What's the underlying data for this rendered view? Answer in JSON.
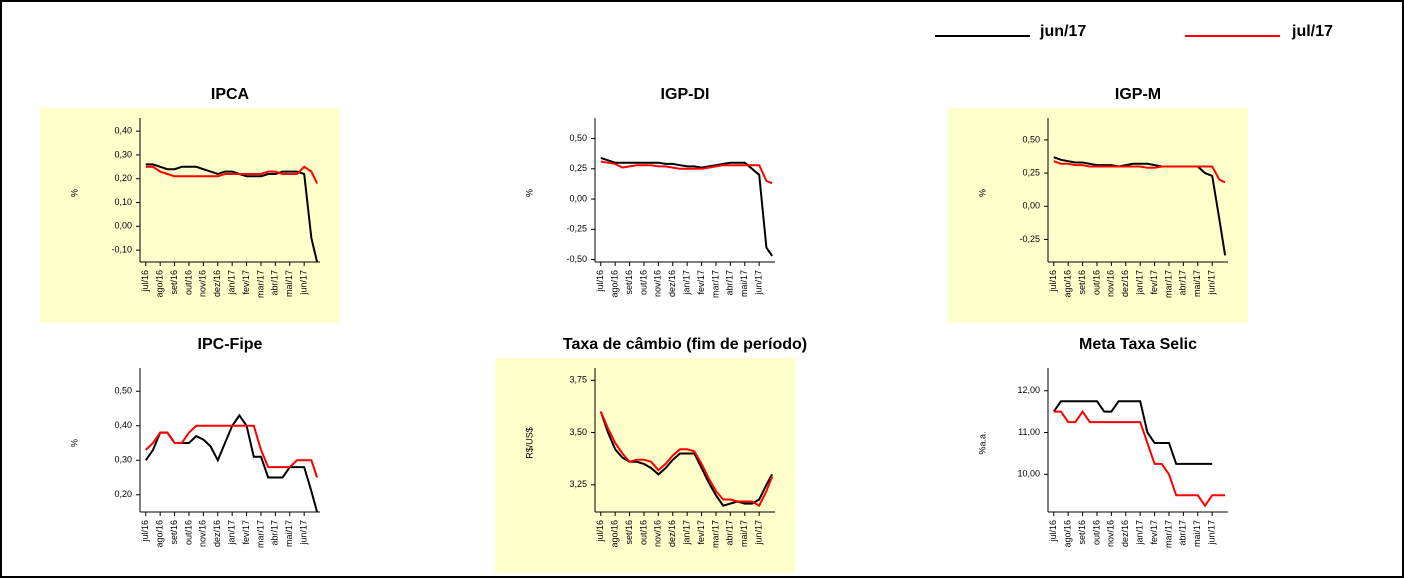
{
  "chart_data": [
    {
      "type": "line",
      "title": "IPCA",
      "ylabel": "%",
      "background": "#ffffcc",
      "x": [
        0,
        0.5,
        1,
        1.5,
        2,
        2.5,
        3,
        3.5,
        4,
        4.5,
        5,
        5.5,
        6,
        6.5,
        7,
        7.5,
        8,
        8.5,
        9,
        9.5,
        10,
        10.5,
        11,
        11.5,
        11.9
      ],
      "xlim": [
        -0.4,
        12.1
      ],
      "xticks": [
        {
          "value": 0,
          "label": "jul/16"
        },
        {
          "value": 1,
          "label": "ago/16"
        },
        {
          "value": 2,
          "label": "set/16"
        },
        {
          "value": 3,
          "label": "out/16"
        },
        {
          "value": 4,
          "label": "nov/16"
        },
        {
          "value": 5,
          "label": "dez/16"
        },
        {
          "value": 6,
          "label": "jan/17"
        },
        {
          "value": 7,
          "label": "fev/17"
        },
        {
          "value": 8,
          "label": "mar/17"
        },
        {
          "value": 9,
          "label": "abr/17"
        },
        {
          "value": 10,
          "label": "mai/17"
        },
        {
          "value": 11,
          "label": "jun/17"
        }
      ],
      "ylim": [
        -0.15,
        0.43
      ],
      "yticks": [
        {
          "value": -0.1,
          "label": "-0,10"
        },
        {
          "value": 0,
          "label": "0,00"
        },
        {
          "value": 0.1,
          "label": "0,10"
        },
        {
          "value": 0.2,
          "label": "0,20"
        },
        {
          "value": 0.3,
          "label": "0,30"
        },
        {
          "value": 0.4,
          "label": "0,40"
        }
      ],
      "series": [
        {
          "name": "jun/17",
          "color": "#000000",
          "values": [
            0.26,
            0.26,
            0.25,
            0.24,
            0.24,
            0.25,
            0.25,
            0.25,
            0.24,
            0.23,
            0.22,
            0.23,
            0.23,
            0.22,
            0.21,
            0.21,
            0.21,
            0.22,
            0.22,
            0.23,
            0.23,
            0.23,
            0.22,
            -0.05,
            -0.15
          ]
        },
        {
          "name": "jul/17",
          "color": "#ff0000",
          "values": [
            0.25,
            0.25,
            0.23,
            0.22,
            0.21,
            0.21,
            0.21,
            0.21,
            0.21,
            0.21,
            0.21,
            0.22,
            0.22,
            0.22,
            0.22,
            0.22,
            0.22,
            0.23,
            0.23,
            0.22,
            0.22,
            0.22,
            0.25,
            0.23,
            0.18
          ]
        }
      ]
    },
    {
      "type": "line",
      "title": "IGP-DI",
      "ylabel": "%",
      "background": "#ffffff",
      "x": [
        0,
        0.5,
        1,
        1.5,
        2,
        2.5,
        3,
        3.5,
        4,
        4.5,
        5,
        5.5,
        6,
        6.5,
        7,
        7.5,
        8,
        8.5,
        9,
        9.5,
        10,
        10.5,
        11,
        11.5,
        11.9
      ],
      "xlim": [
        -0.4,
        12.1
      ],
      "xticks": [
        {
          "value": 0,
          "label": "jul/16"
        },
        {
          "value": 1,
          "label": "ago/16"
        },
        {
          "value": 2,
          "label": "set/16"
        },
        {
          "value": 3,
          "label": "out/16"
        },
        {
          "value": 4,
          "label": "nov/16"
        },
        {
          "value": 5,
          "label": "dez/16"
        },
        {
          "value": 6,
          "label": "jan/17"
        },
        {
          "value": 7,
          "label": "fev/17"
        },
        {
          "value": 8,
          "label": "mar/17"
        },
        {
          "value": 9,
          "label": "abr/17"
        },
        {
          "value": 10,
          "label": "mai/17"
        },
        {
          "value": 11,
          "label": "jun/17"
        }
      ],
      "ylim": [
        -0.52,
        0.62
      ],
      "yticks": [
        {
          "value": -0.5,
          "label": "-0,50"
        },
        {
          "value": -0.25,
          "label": "-0,25"
        },
        {
          "value": 0,
          "label": "0,00"
        },
        {
          "value": 0.25,
          "label": "0,25"
        },
        {
          "value": 0.5,
          "label": "0,50"
        }
      ],
      "series": [
        {
          "name": "jun/17",
          "color": "#000000",
          "values": [
            0.34,
            0.32,
            0.3,
            0.3,
            0.3,
            0.3,
            0.3,
            0.3,
            0.3,
            0.29,
            0.29,
            0.28,
            0.27,
            0.27,
            0.26,
            0.27,
            0.28,
            0.29,
            0.3,
            0.3,
            0.3,
            0.25,
            0.2,
            -0.4,
            -0.47
          ]
        },
        {
          "name": "jul/17",
          "color": "#ff0000",
          "values": [
            0.31,
            0.3,
            0.29,
            0.26,
            0.27,
            0.28,
            0.28,
            0.28,
            0.27,
            0.27,
            0.26,
            0.25,
            0.25,
            0.25,
            0.25,
            0.26,
            0.27,
            0.28,
            0.28,
            0.28,
            0.28,
            0.28,
            0.28,
            0.15,
            0.13
          ]
        }
      ]
    },
    {
      "type": "line",
      "title": "IGP-M",
      "ylabel": "%",
      "background": "#ffffcc",
      "x": [
        0,
        0.5,
        1,
        1.5,
        2,
        2.5,
        3,
        3.5,
        4,
        4.5,
        5,
        5.5,
        6,
        6.5,
        7,
        7.5,
        8,
        8.5,
        9,
        9.5,
        10,
        10.5,
        11,
        11.5,
        11.9
      ],
      "xlim": [
        -0.4,
        12.1
      ],
      "xticks": [
        {
          "value": 0,
          "label": "jul/16"
        },
        {
          "value": 1,
          "label": "ago/16"
        },
        {
          "value": 2,
          "label": "set/16"
        },
        {
          "value": 3,
          "label": "out/16"
        },
        {
          "value": 4,
          "label": "nov/16"
        },
        {
          "value": 5,
          "label": "dez/16"
        },
        {
          "value": 6,
          "label": "jan/17"
        },
        {
          "value": 7,
          "label": "fev/17"
        },
        {
          "value": 8,
          "label": "mar/17"
        },
        {
          "value": 9,
          "label": "abr/17"
        },
        {
          "value": 10,
          "label": "mai/17"
        },
        {
          "value": 11,
          "label": "jun/17"
        }
      ],
      "ylim": [
        -0.42,
        0.62
      ],
      "yticks": [
        {
          "value": -0.25,
          "label": "-0,25"
        },
        {
          "value": 0,
          "label": "0,00"
        },
        {
          "value": 0.25,
          "label": "0,25"
        },
        {
          "value": 0.5,
          "label": "0,50"
        }
      ],
      "series": [
        {
          "name": "jun/17",
          "color": "#000000",
          "values": [
            0.37,
            0.35,
            0.34,
            0.33,
            0.33,
            0.32,
            0.31,
            0.31,
            0.31,
            0.3,
            0.31,
            0.32,
            0.32,
            0.32,
            0.31,
            0.3,
            0.3,
            0.3,
            0.3,
            0.3,
            0.3,
            0.25,
            0.23,
            -0.1,
            -0.37
          ]
        },
        {
          "name": "jul/17",
          "color": "#ff0000",
          "values": [
            0.34,
            0.32,
            0.32,
            0.31,
            0.31,
            0.3,
            0.3,
            0.3,
            0.3,
            0.3,
            0.3,
            0.3,
            0.3,
            0.29,
            0.29,
            0.3,
            0.3,
            0.3,
            0.3,
            0.3,
            0.3,
            0.3,
            0.3,
            0.2,
            0.18
          ]
        }
      ]
    },
    {
      "type": "line",
      "title": "IPC-Fipe",
      "ylabel": "%",
      "background": "#ffffff",
      "x": [
        0,
        0.5,
        1,
        1.5,
        2,
        2.5,
        3,
        3.5,
        4,
        4.5,
        5,
        5.5,
        6,
        6.5,
        7,
        7.5,
        8,
        8.5,
        9,
        9.5,
        10,
        10.5,
        11,
        11.5,
        11.9
      ],
      "xlim": [
        -0.4,
        12.1
      ],
      "xticks": [
        {
          "value": 0,
          "label": "jul/16"
        },
        {
          "value": 1,
          "label": "ago/16"
        },
        {
          "value": 2,
          "label": "set/16"
        },
        {
          "value": 3,
          "label": "out/16"
        },
        {
          "value": 4,
          "label": "nov/16"
        },
        {
          "value": 5,
          "label": "dez/16"
        },
        {
          "value": 6,
          "label": "jan/17"
        },
        {
          "value": 7,
          "label": "fev/17"
        },
        {
          "value": 8,
          "label": "mar/17"
        },
        {
          "value": 9,
          "label": "abr/17"
        },
        {
          "value": 10,
          "label": "mai/17"
        },
        {
          "value": 11,
          "label": "jun/17"
        }
      ],
      "ylim": [
        0.15,
        0.55
      ],
      "yticks": [
        {
          "value": 0.2,
          "label": "0,20"
        },
        {
          "value": 0.3,
          "label": "0,30"
        },
        {
          "value": 0.4,
          "label": "0,40"
        },
        {
          "value": 0.5,
          "label": "0,50"
        }
      ],
      "series": [
        {
          "name": "jun/17",
          "color": "#000000",
          "values": [
            0.3,
            0.33,
            0.38,
            0.38,
            0.35,
            0.35,
            0.35,
            0.37,
            0.36,
            0.34,
            0.3,
            0.35,
            0.4,
            0.43,
            0.4,
            0.31,
            0.31,
            0.25,
            0.25,
            0.25,
            0.28,
            0.28,
            0.28,
            0.21,
            0.15
          ]
        },
        {
          "name": "jul/17",
          "color": "#ff0000",
          "values": [
            0.33,
            0.35,
            0.38,
            0.38,
            0.35,
            0.35,
            0.38,
            0.4,
            0.4,
            0.4,
            0.4,
            0.4,
            0.4,
            0.4,
            0.4,
            0.4,
            0.33,
            0.28,
            0.28,
            0.28,
            0.28,
            0.3,
            0.3,
            0.3,
            0.25
          ]
        }
      ]
    },
    {
      "type": "line",
      "title": "Taxa de câmbio (fim de período)",
      "ylabel": "R$/US$",
      "background": "#ffffcc",
      "x": [
        0,
        0.5,
        1,
        1.5,
        2,
        2.5,
        3,
        3.5,
        4,
        4.5,
        5,
        5.5,
        6,
        6.5,
        7,
        7.5,
        8,
        8.5,
        9,
        9.5,
        10,
        10.5,
        11,
        11.5,
        11.9
      ],
      "xlim": [
        -0.4,
        12.1
      ],
      "xticks": [
        {
          "value": 0,
          "label": "jul/16"
        },
        {
          "value": 1,
          "label": "ago/16"
        },
        {
          "value": 2,
          "label": "set/16"
        },
        {
          "value": 3,
          "label": "out/16"
        },
        {
          "value": 4,
          "label": "nov/16"
        },
        {
          "value": 5,
          "label": "dez/16"
        },
        {
          "value": 6,
          "label": "jan/17"
        },
        {
          "value": 7,
          "label": "fev/17"
        },
        {
          "value": 8,
          "label": "mar/17"
        },
        {
          "value": 9,
          "label": "abr/17"
        },
        {
          "value": 10,
          "label": "mai/17"
        },
        {
          "value": 11,
          "label": "jun/17"
        }
      ],
      "ylim": [
        3.12,
        3.78
      ],
      "yticks": [
        {
          "value": 3.25,
          "label": "3,25"
        },
        {
          "value": 3.5,
          "label": "3,50"
        },
        {
          "value": 3.75,
          "label": "3,75"
        }
      ],
      "series": [
        {
          "name": "jun/17",
          "color": "#000000",
          "values": [
            3.6,
            3.5,
            3.42,
            3.38,
            3.36,
            3.36,
            3.35,
            3.33,
            3.3,
            3.33,
            3.37,
            3.4,
            3.4,
            3.4,
            3.33,
            3.26,
            3.2,
            3.15,
            3.16,
            3.17,
            3.16,
            3.16,
            3.18,
            3.25,
            3.3
          ]
        },
        {
          "name": "jul/17",
          "color": "#ff0000",
          "values": [
            3.6,
            3.52,
            3.45,
            3.4,
            3.36,
            3.37,
            3.37,
            3.36,
            3.32,
            3.35,
            3.39,
            3.42,
            3.42,
            3.41,
            3.35,
            3.28,
            3.22,
            3.18,
            3.18,
            3.17,
            3.17,
            3.17,
            3.15,
            3.22,
            3.29
          ]
        }
      ]
    },
    {
      "type": "line",
      "title": "Meta Taxa Selic",
      "ylabel": "%a.a.",
      "background": "#ffffff",
      "x": [
        0,
        0.5,
        1,
        1.5,
        2,
        2.5,
        3,
        3.5,
        4,
        4.5,
        5,
        5.5,
        6,
        6.5,
        7,
        7.5,
        8,
        8.5,
        9,
        9.5,
        10,
        10.5,
        11,
        11.5,
        11.9
      ],
      "xlim": [
        -0.4,
        12.1
      ],
      "xticks": [
        {
          "value": 0,
          "label": "jul/16"
        },
        {
          "value": 1,
          "label": "ago/16"
        },
        {
          "value": 2,
          "label": "set/16"
        },
        {
          "value": 3,
          "label": "out/16"
        },
        {
          "value": 4,
          "label": "nov/16"
        },
        {
          "value": 5,
          "label": "dez/16"
        },
        {
          "value": 6,
          "label": "jan/17"
        },
        {
          "value": 7,
          "label": "fev/17"
        },
        {
          "value": 8,
          "label": "mar/17"
        },
        {
          "value": 9,
          "label": "abr/17"
        },
        {
          "value": 10,
          "label": "mai/17"
        },
        {
          "value": 11,
          "label": "jun/17"
        }
      ],
      "ylim": [
        9.1,
        12.4
      ],
      "yticks": [
        {
          "value": 10,
          "label": "10,00"
        },
        {
          "value": 11,
          "label": "11,00"
        },
        {
          "value": 12,
          "label": "12,00"
        }
      ],
      "series": [
        {
          "name": "jun/17",
          "color": "#000000",
          "values": [
            11.5,
            11.75,
            11.75,
            11.75,
            11.75,
            11.75,
            11.75,
            11.5,
            11.5,
            11.75,
            11.75,
            11.75,
            11.75,
            11.0,
            10.75,
            10.75,
            10.75,
            10.25,
            10.25,
            10.25,
            10.25,
            10.25,
            10.25,
            null,
            null
          ]
        },
        {
          "name": "jul/17",
          "color": "#ff0000",
          "values": [
            11.5,
            11.5,
            11.25,
            11.25,
            11.5,
            11.25,
            11.25,
            11.25,
            11.25,
            11.25,
            11.25,
            11.25,
            11.25,
            10.75,
            10.25,
            10.25,
            10.0,
            9.5,
            9.5,
            9.5,
            9.5,
            9.25,
            9.5,
            9.5,
            9.5
          ]
        }
      ]
    }
  ]
}
